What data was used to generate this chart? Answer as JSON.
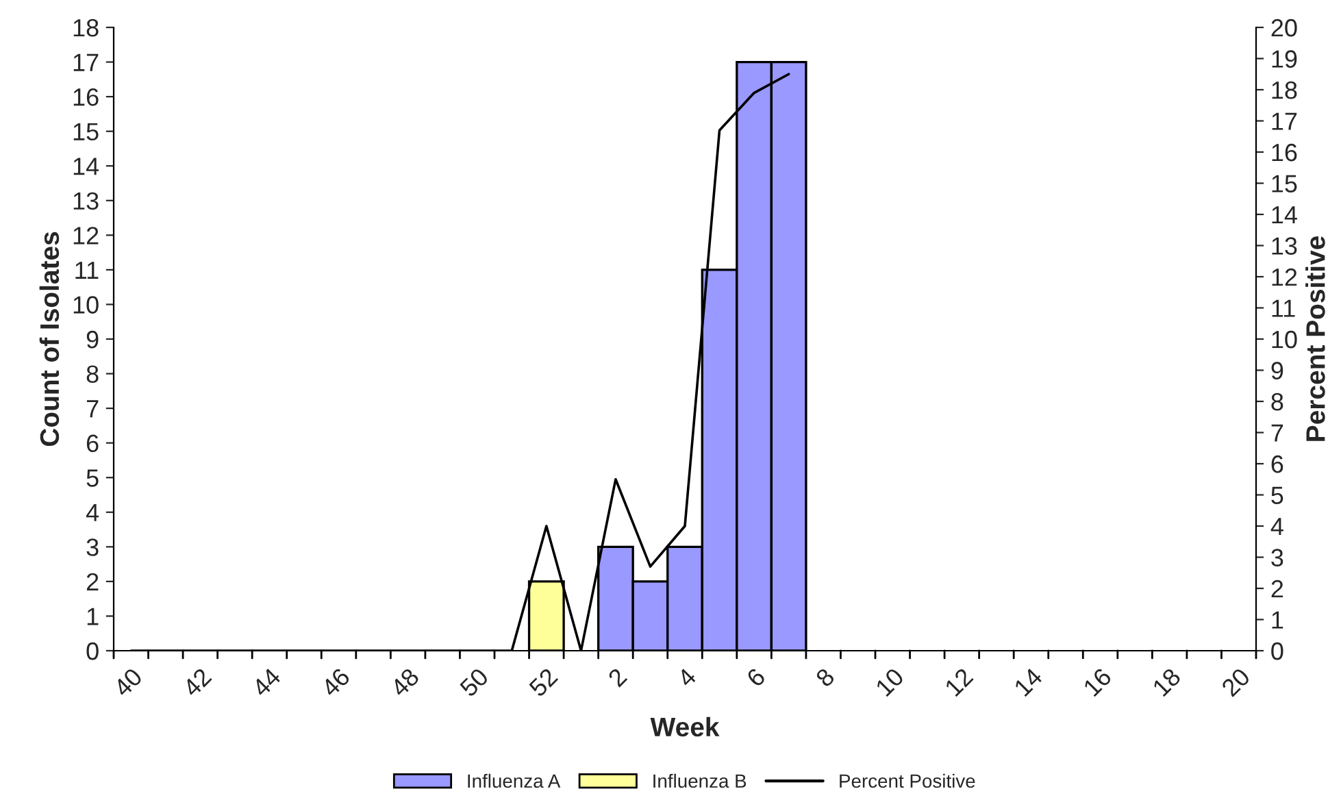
{
  "chart_data": {
    "type": "bar",
    "xlabel": "Week",
    "ylabel": "Count of Isolates",
    "y2label": "Percent Positive",
    "categories": [
      "40",
      null,
      "42",
      null,
      "44",
      null,
      "46",
      null,
      "48",
      null,
      "50",
      null,
      "52",
      null,
      "2",
      null,
      "4",
      null,
      "6",
      null,
      "8",
      null,
      "10",
      null,
      "12",
      null,
      "14",
      null,
      "16",
      null,
      "18",
      null,
      "20"
    ],
    "series": [
      {
        "name": "Influenza A",
        "color": "#9999ff",
        "values": [
          null,
          null,
          null,
          null,
          null,
          null,
          null,
          null,
          null,
          null,
          null,
          null,
          null,
          null,
          3,
          2,
          3,
          11,
          17,
          17,
          null,
          null,
          null,
          null,
          null,
          null,
          null,
          null,
          null,
          null,
          null,
          null,
          null
        ]
      },
      {
        "name": "Influenza B",
        "color": "#ffff99",
        "values": [
          null,
          null,
          null,
          null,
          null,
          null,
          null,
          null,
          null,
          null,
          null,
          null,
          2,
          null,
          null,
          null,
          null,
          null,
          null,
          null,
          null,
          null,
          null,
          null,
          null,
          null,
          null,
          null,
          null,
          null,
          null,
          null,
          null
        ]
      },
      {
        "name": "Percent Positive",
        "type": "line",
        "axis": "y2",
        "color": "#000000",
        "values": [
          0,
          0,
          0,
          0,
          0,
          0,
          0,
          0,
          0,
          0,
          0,
          0,
          4,
          0,
          5.5,
          2.7,
          4,
          16.7,
          17.9,
          18.5,
          null,
          null,
          null,
          null,
          null,
          null,
          null,
          null,
          null,
          null,
          null,
          null,
          null
        ]
      }
    ],
    "ylim": [
      0,
      18
    ],
    "yticks": [
      0,
      1,
      2,
      3,
      4,
      5,
      6,
      7,
      8,
      9,
      10,
      11,
      12,
      13,
      14,
      15,
      16,
      17,
      18
    ],
    "y2lim": [
      0,
      20
    ],
    "y2ticks": [
      0,
      1,
      2,
      3,
      4,
      5,
      6,
      7,
      8,
      9,
      10,
      11,
      12,
      13,
      14,
      15,
      16,
      17,
      18,
      19,
      20
    ],
    "grid": false,
    "legend": "bottom"
  }
}
